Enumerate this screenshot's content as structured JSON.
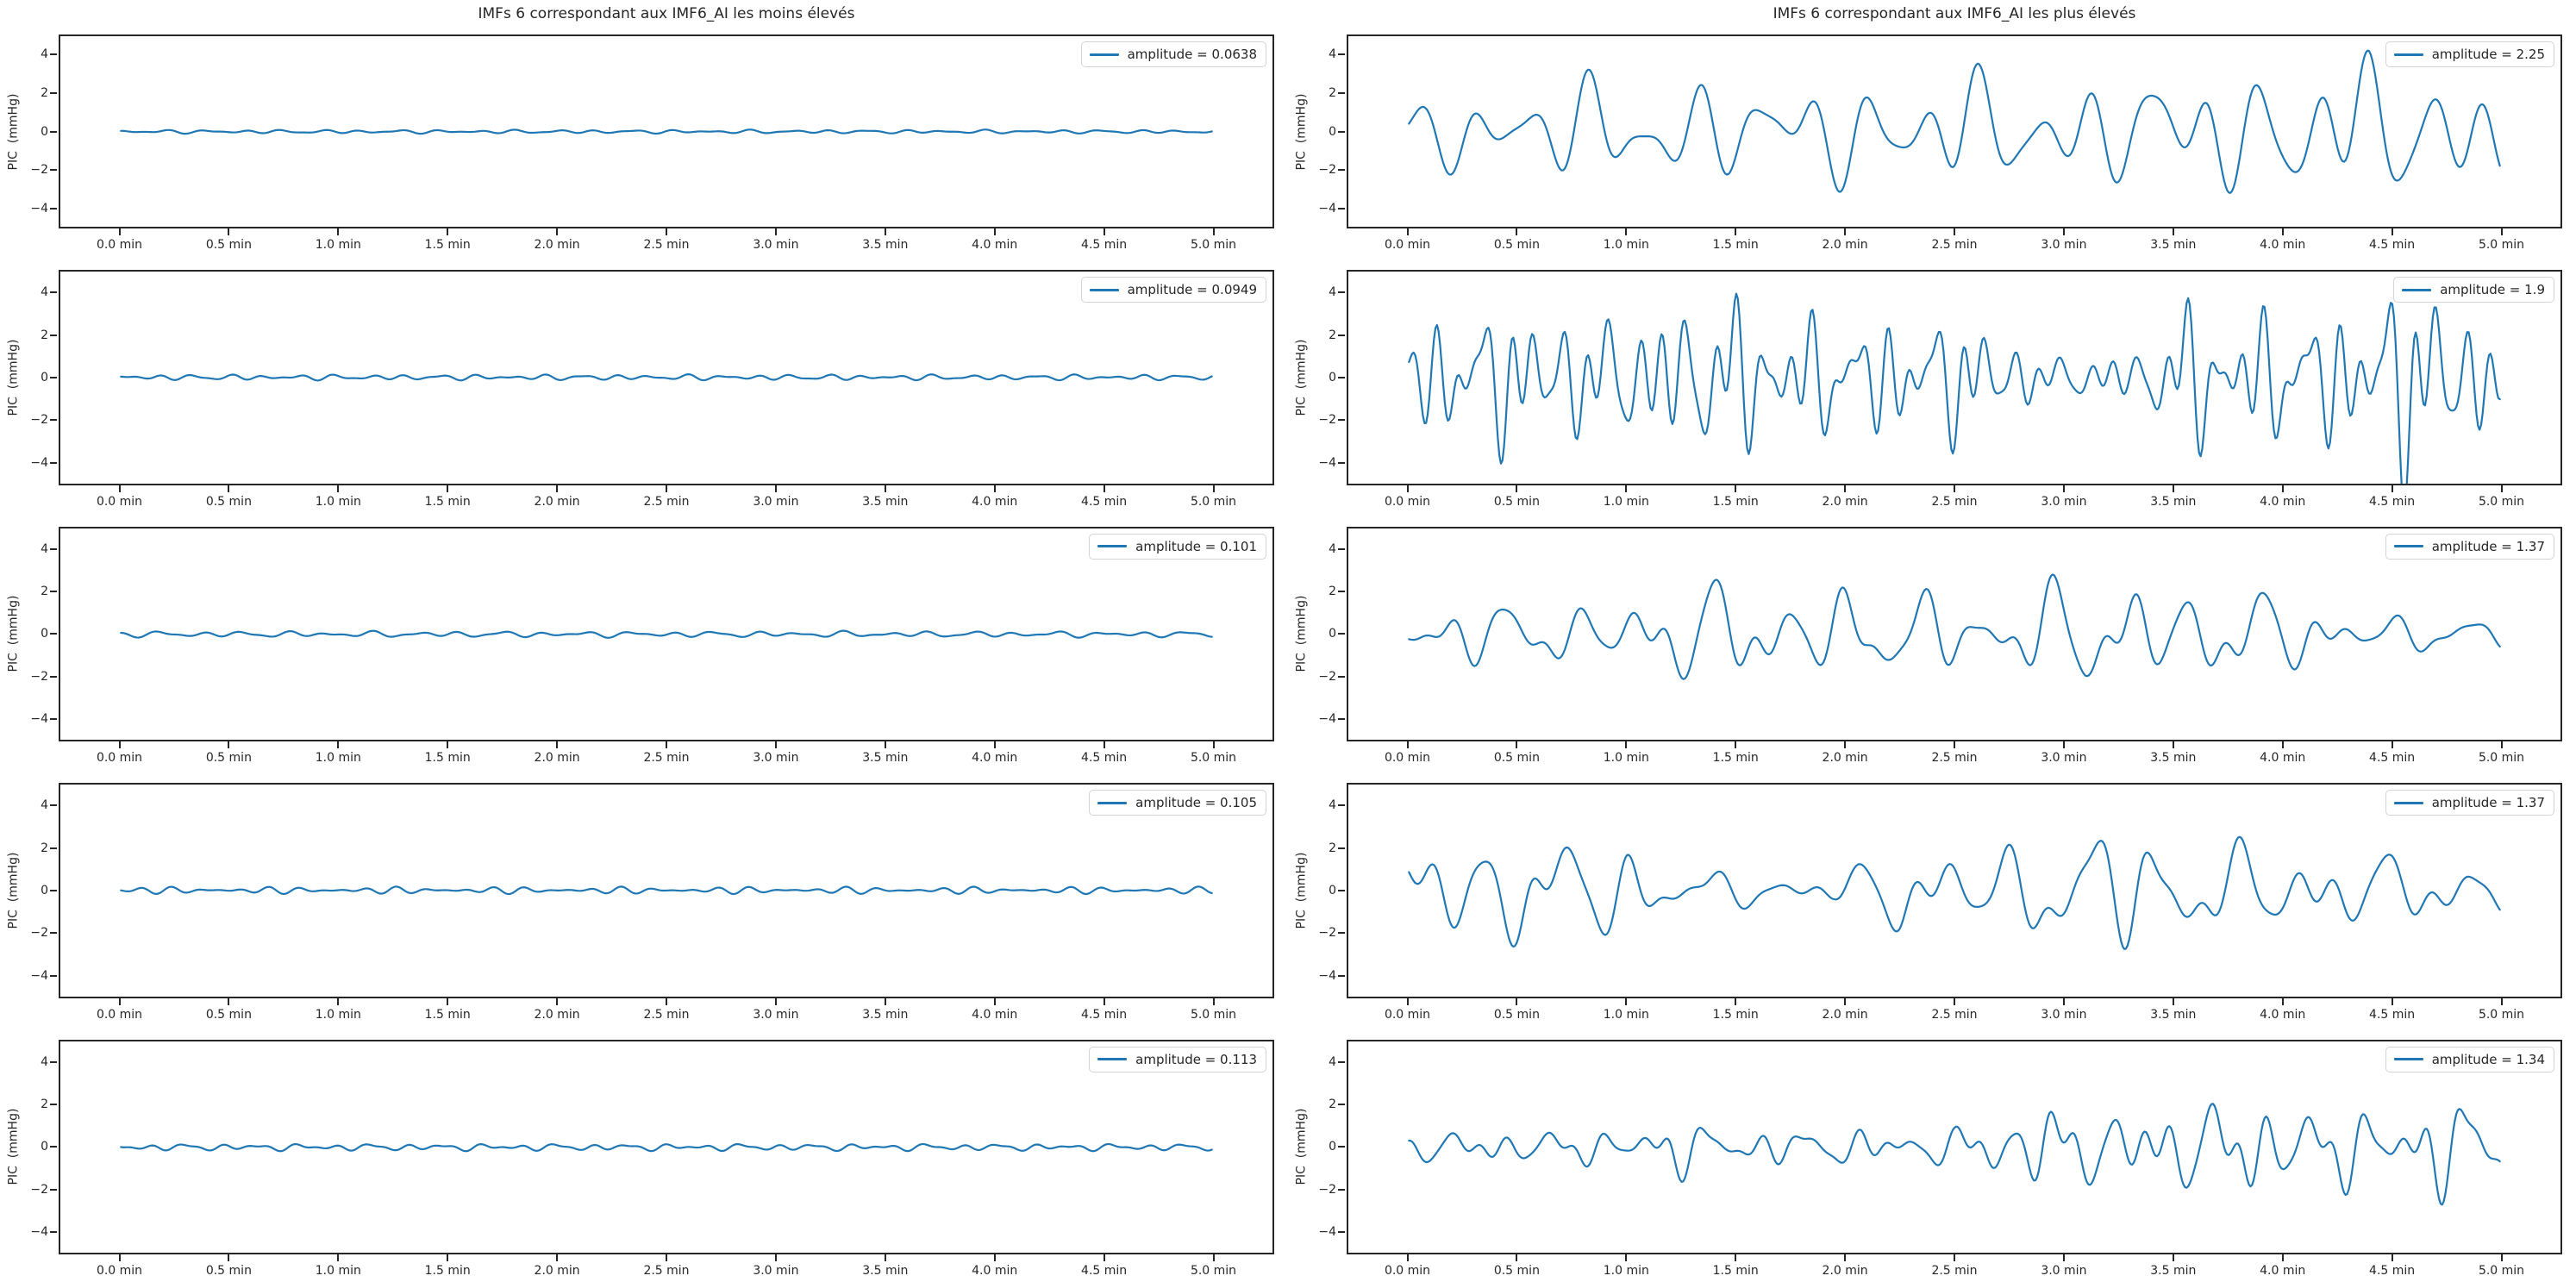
{
  "figure": {
    "left_title": "IMFs 6 correspondant aux IMF6_AI les moins élevés",
    "right_title": "IMFs 6 correspondant aux IMF6_AI les plus élevés"
  },
  "colors": {
    "line": "#1f77b4",
    "spine": "#262626",
    "legend_border": "#d4d4d4",
    "background": "#ffffff"
  },
  "axes": {
    "ylabel": "PIC  (mmHg)",
    "xlabel_unit": "min",
    "xtick_labels": [
      "0.0 min",
      "0.5 min",
      "1.0 min",
      "1.5 min",
      "2.0 min",
      "2.5 min",
      "3.0 min",
      "3.5 min",
      "4.0 min",
      "4.5 min",
      "5.0 min"
    ],
    "xtick_values": [
      0,
      0.5,
      1,
      1.5,
      2,
      2.5,
      3,
      3.5,
      4,
      4.5,
      5
    ],
    "ytick_labels": [
      "4",
      "2",
      "0",
      "−2",
      "−4"
    ],
    "ytick_values": [
      4,
      2,
      0,
      -2,
      -4
    ],
    "xlim": [
      0,
      5
    ],
    "ylim": [
      -5.05,
      5.05
    ],
    "x_margin_frac": 0.05,
    "grid": false,
    "legend_position": "upper right"
  },
  "chart_data": [
    {
      "type": "line",
      "column": "left",
      "row": 0,
      "legend_label": "amplitude = 0.0638",
      "amplitude": 0.0638,
      "waveform_synthesis": {
        "components": [
          [
            0.055,
            5.6,
            0.5
          ],
          [
            0.035,
            8.3,
            2.1
          ],
          [
            0.022,
            3.7,
            4.0
          ]
        ],
        "envelope": [
          [
            0,
            1
          ],
          [
            5,
            1
          ]
        ]
      }
    },
    {
      "type": "line",
      "column": "left",
      "row": 1,
      "legend_label": "amplitude = 0.0949",
      "amplitude": 0.0949,
      "waveform_synthesis": {
        "components": [
          [
            0.075,
            6.2,
            1.0
          ],
          [
            0.05,
            9.1,
            3.3
          ],
          [
            0.03,
            4.4,
            5.5
          ]
        ],
        "envelope": [
          [
            0,
            1
          ],
          [
            5,
            1
          ]
        ]
      }
    },
    {
      "type": "line",
      "column": "left",
      "row": 2,
      "legend_label": "amplitude = 0.101",
      "amplitude": 0.101,
      "waveform_synthesis": {
        "components": [
          [
            0.08,
            5.1,
            2.2
          ],
          [
            0.05,
            7.9,
            0.7
          ],
          [
            0.04,
            3.2,
            3.9
          ]
        ],
        "envelope": [
          [
            0,
            1
          ],
          [
            5,
            1
          ]
        ]
      }
    },
    {
      "type": "line",
      "column": "left",
      "row": 3,
      "legend_label": "amplitude = 0.105",
      "amplitude": 0.105,
      "waveform_synthesis": {
        "components": [
          [
            0.082,
            6.8,
            4.1
          ],
          [
            0.058,
            8.7,
            1.9
          ],
          [
            0.04,
            4.9,
            0.3
          ]
        ],
        "envelope": [
          [
            0,
            1
          ],
          [
            5,
            1
          ]
        ]
      }
    },
    {
      "type": "line",
      "column": "left",
      "row": 4,
      "legend_label": "amplitude = 0.113",
      "amplitude": 0.113,
      "waveform_synthesis": {
        "components": [
          [
            0.09,
            5.9,
            3.0
          ],
          [
            0.06,
            9.4,
            5.2
          ],
          [
            0.048,
            3.5,
            1.6
          ]
        ],
        "envelope": [
          [
            0,
            1
          ],
          [
            5,
            1
          ]
        ]
      }
    },
    {
      "type": "line",
      "column": "right",
      "row": 0,
      "legend_label": "amplitude = 2.25",
      "amplitude": 2.25,
      "waveform_synthesis": {
        "components": [
          [
            1.7,
            3.9,
            0.2
          ],
          [
            0.95,
            2.3,
            1.7
          ],
          [
            0.65,
            5.6,
            4.4
          ],
          [
            0.45,
            1.1,
            2.9
          ]
        ],
        "envelope": [
          [
            0,
            0.55
          ],
          [
            0.5,
            0.75
          ],
          [
            0.9,
            1.0
          ],
          [
            1.3,
            0.85
          ],
          [
            2.0,
            0.9
          ],
          [
            2.5,
            1.05
          ],
          [
            3.0,
            0.85
          ],
          [
            3.6,
            1.05
          ],
          [
            4.0,
            1.15
          ],
          [
            4.4,
            1.35
          ],
          [
            4.6,
            1.2
          ],
          [
            5,
            0.9
          ]
        ]
      }
    },
    {
      "type": "line",
      "column": "right",
      "row": 1,
      "legend_label": "amplitude = 1.9",
      "amplitude": 1.9,
      "waveform_synthesis": {
        "components": [
          [
            1.25,
            8.7,
            0.9
          ],
          [
            1.0,
            5.3,
            3.1
          ],
          [
            0.8,
            11.6,
            5.0
          ],
          [
            0.6,
            3.4,
            1.2
          ]
        ],
        "envelope": [
          [
            0,
            0.9
          ],
          [
            0.55,
            1.35
          ],
          [
            0.8,
            1.0
          ],
          [
            1.5,
            1.4
          ],
          [
            1.9,
            1.0
          ],
          [
            2.6,
            1.1
          ],
          [
            2.9,
            0.35
          ],
          [
            3.3,
            0.4
          ],
          [
            3.6,
            1.35
          ],
          [
            4.0,
            1.1
          ],
          [
            4.35,
            1.25
          ],
          [
            4.55,
            1.9
          ],
          [
            4.75,
            1.5
          ],
          [
            5,
            0.85
          ]
        ]
      }
    },
    {
      "type": "line",
      "column": "right",
      "row": 2,
      "legend_label": "amplitude = 1.37",
      "amplitude": 1.37,
      "waveform_synthesis": {
        "components": [
          [
            1.05,
            3.2,
            4.8
          ],
          [
            0.7,
            5.1,
            1.0
          ],
          [
            0.5,
            2.0,
            2.5
          ],
          [
            0.3,
            7.4,
            3.6
          ]
        ],
        "envelope": [
          [
            0,
            0.8
          ],
          [
            0.9,
            0.7
          ],
          [
            1.3,
            1.25
          ],
          [
            1.7,
            1.2
          ],
          [
            2.2,
            1.0
          ],
          [
            2.8,
            1.05
          ],
          [
            3.1,
            1.4
          ],
          [
            3.5,
            1.15
          ],
          [
            4.0,
            1.0
          ],
          [
            4.4,
            0.45
          ],
          [
            5,
            0.4
          ]
        ]
      }
    },
    {
      "type": "line",
      "column": "right",
      "row": 3,
      "legend_label": "amplitude = 1.37",
      "amplitude": 1.37,
      "waveform_synthesis": {
        "components": [
          [
            1.15,
            2.9,
            1.5
          ],
          [
            0.8,
            4.6,
            4.2
          ],
          [
            0.5,
            1.6,
            0.6
          ],
          [
            0.4,
            6.8,
            2.8
          ]
        ],
        "envelope": [
          [
            0,
            1.0
          ],
          [
            0.5,
            1.25
          ],
          [
            1.0,
            1.05
          ],
          [
            1.35,
            0.4
          ],
          [
            1.95,
            0.35
          ],
          [
            2.25,
            0.95
          ],
          [
            2.6,
            0.85
          ],
          [
            3.05,
            1.3
          ],
          [
            3.35,
            1.5
          ],
          [
            3.75,
            0.95
          ],
          [
            4.1,
            1.0
          ],
          [
            4.55,
            0.7
          ],
          [
            4.85,
            0.85
          ],
          [
            5,
            0.65
          ]
        ]
      }
    },
    {
      "type": "line",
      "column": "right",
      "row": 4,
      "legend_label": "amplitude = 1.34",
      "amplitude": 1.34,
      "waveform_synthesis": {
        "components": [
          [
            0.85,
            4.3,
            2.4
          ],
          [
            0.6,
            6.9,
            0.3
          ],
          [
            0.5,
            2.6,
            3.8
          ],
          [
            0.35,
            9.2,
            1.4
          ]
        ],
        "envelope": [
          [
            0,
            0.4
          ],
          [
            1.0,
            0.5
          ],
          [
            1.2,
            0.85
          ],
          [
            1.45,
            0.5
          ],
          [
            2.5,
            0.5
          ],
          [
            2.8,
            1.2
          ],
          [
            3.2,
            1.0
          ],
          [
            3.85,
            1.35
          ],
          [
            4.2,
            1.05
          ],
          [
            4.6,
            1.25
          ],
          [
            4.8,
            1.4
          ],
          [
            5,
            0.95
          ]
        ]
      }
    }
  ]
}
